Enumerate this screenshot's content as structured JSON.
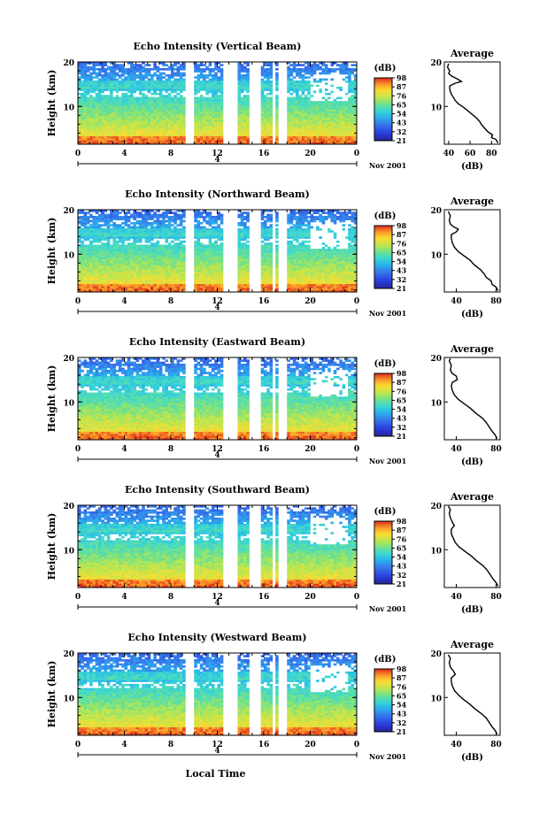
{
  "figure": {
    "date_label": "Nov 2001",
    "time_marker": "4",
    "bottom_xlabel": "Local Time"
  },
  "chart_data": [
    {
      "type": "heatmap",
      "title": "Echo Intensity (Vertical Beam)",
      "ylabel": "Height (km)",
      "xlabel": "",
      "xticks": [
        "0",
        "4",
        "8",
        "12",
        "16",
        "20",
        "0"
      ],
      "xlim": [
        0,
        24
      ],
      "yticks": [
        10,
        20
      ],
      "ylim": [
        1.5,
        20
      ],
      "colorbar": {
        "unit": "(dB)",
        "ticks": [
          98,
          87,
          76,
          65,
          54,
          43,
          32,
          21
        ],
        "range": [
          21,
          98
        ]
      },
      "profile": {
        "title": "Average",
        "xlabel": "(dB)",
        "xticks": [
          40,
          60,
          80
        ],
        "xlim": [
          36,
          88
        ],
        "yticks": [
          10,
          20
        ],
        "points": [
          [
            86,
            1.8
          ],
          [
            84,
            2.6
          ],
          [
            80,
            3.0
          ],
          [
            81,
            3.6
          ],
          [
            77,
            4.2
          ],
          [
            74,
            5.0
          ],
          [
            71,
            5.8
          ],
          [
            69,
            6.6
          ],
          [
            66,
            7.4
          ],
          [
            62,
            8.2
          ],
          [
            58,
            9.0
          ],
          [
            54,
            9.8
          ],
          [
            49,
            10.6
          ],
          [
            46,
            11.4
          ],
          [
            44,
            12.2
          ],
          [
            42,
            13.0
          ],
          [
            41,
            14.0
          ],
          [
            41,
            14.6
          ],
          [
            46,
            15.2
          ],
          [
            52,
            15.6
          ],
          [
            48,
            16.2
          ],
          [
            43,
            16.8
          ],
          [
            40,
            17.4
          ],
          [
            41,
            18.0
          ],
          [
            39,
            18.8
          ],
          [
            40,
            19.6
          ]
        ]
      }
    },
    {
      "type": "heatmap",
      "title": "Echo Intensity (Northward Beam)",
      "ylabel": "Height (km)",
      "xlabel": "",
      "xticks": [
        "0",
        "4",
        "8",
        "12",
        "16",
        "20",
        "0"
      ],
      "xlim": [
        0,
        24
      ],
      "yticks": [
        10,
        20
      ],
      "ylim": [
        1.5,
        20
      ],
      "colorbar": {
        "unit": "(dB)",
        "ticks": [
          98,
          87,
          76,
          65,
          54,
          43,
          32,
          21
        ],
        "range": [
          21,
          98
        ]
      },
      "profile": {
        "title": "Average",
        "xlabel": "(dB)",
        "xticks": [
          40,
          80
        ],
        "xlim": [
          28,
          84
        ],
        "yticks": [
          10,
          20
        ],
        "points": [
          [
            82,
            1.8
          ],
          [
            80,
            2.6
          ],
          [
            76,
            3.2
          ],
          [
            75,
            4.0
          ],
          [
            70,
            4.8
          ],
          [
            68,
            5.6
          ],
          [
            64,
            6.6
          ],
          [
            58,
            7.6
          ],
          [
            54,
            8.6
          ],
          [
            48,
            9.6
          ],
          [
            42,
            10.6
          ],
          [
            38,
            11.6
          ],
          [
            36,
            12.6
          ],
          [
            35,
            13.6
          ],
          [
            35,
            14.4
          ],
          [
            40,
            15.0
          ],
          [
            42,
            15.6
          ],
          [
            37,
            16.2
          ],
          [
            34,
            16.8
          ],
          [
            33,
            17.6
          ],
          [
            34,
            18.6
          ],
          [
            32,
            19.6
          ]
        ]
      }
    },
    {
      "type": "heatmap",
      "title": "Echo Intensity (Eastward Beam)",
      "ylabel": "Height (km)",
      "xlabel": "",
      "xticks": [
        "0",
        "4",
        "8",
        "12",
        "16",
        "20",
        "0"
      ],
      "xlim": [
        0,
        24
      ],
      "yticks": [
        10,
        20
      ],
      "ylim": [
        1.5,
        20
      ],
      "colorbar": {
        "unit": "(dB)",
        "ticks": [
          98,
          87,
          76,
          65,
          54,
          43,
          32,
          21
        ],
        "range": [
          21,
          98
        ]
      },
      "profile": {
        "title": "Average",
        "xlabel": "(dB)",
        "xticks": [
          40,
          80
        ],
        "xlim": [
          28,
          84
        ],
        "yticks": [
          10,
          20
        ],
        "points": [
          [
            81,
            1.8
          ],
          [
            79,
            2.6
          ],
          [
            76,
            3.4
          ],
          [
            73,
            4.4
          ],
          [
            70,
            5.4
          ],
          [
            66,
            6.4
          ],
          [
            60,
            7.4
          ],
          [
            54,
            8.6
          ],
          [
            48,
            9.6
          ],
          [
            42,
            10.6
          ],
          [
            38,
            11.6
          ],
          [
            36,
            12.6
          ],
          [
            35,
            13.6
          ],
          [
            36,
            14.4
          ],
          [
            41,
            15.0
          ],
          [
            40,
            15.8
          ],
          [
            36,
            16.4
          ],
          [
            34,
            17.2
          ],
          [
            35,
            18.2
          ],
          [
            33,
            19.2
          ],
          [
            34,
            19.8
          ]
        ]
      }
    },
    {
      "type": "heatmap",
      "title": "Echo Intensity (Southward Beam)",
      "ylabel": "Height (km)",
      "xlabel": "",
      "xticks": [
        "0",
        "4",
        "8",
        "12",
        "16",
        "20",
        "0"
      ],
      "xlim": [
        0,
        24
      ],
      "yticks": [
        10,
        20
      ],
      "ylim": [
        1.5,
        20
      ],
      "colorbar": {
        "unit": "(dB)",
        "ticks": [
          98,
          87,
          76,
          65,
          54,
          43,
          32,
          21
        ],
        "range": [
          21,
          98
        ]
      },
      "profile": {
        "title": "Average",
        "xlabel": "(dB)",
        "xticks": [
          40,
          80
        ],
        "xlim": [
          28,
          84
        ],
        "yticks": [
          10,
          20
        ],
        "points": [
          [
            82,
            1.8
          ],
          [
            80,
            2.6
          ],
          [
            77,
            3.4
          ],
          [
            74,
            4.4
          ],
          [
            71,
            5.4
          ],
          [
            67,
            6.4
          ],
          [
            61,
            7.4
          ],
          [
            55,
            8.6
          ],
          [
            49,
            9.6
          ],
          [
            43,
            10.6
          ],
          [
            39,
            11.6
          ],
          [
            37,
            12.6
          ],
          [
            35,
            13.6
          ],
          [
            35,
            14.6
          ],
          [
            38,
            15.4
          ],
          [
            36,
            16.2
          ],
          [
            34,
            17.2
          ],
          [
            33,
            18.2
          ],
          [
            34,
            19.0
          ],
          [
            32,
            19.8
          ]
        ]
      }
    },
    {
      "type": "heatmap",
      "title": "Echo Intensity (Westward Beam)",
      "ylabel": "Height (km)",
      "xlabel": "",
      "xticks": [
        "0",
        "4",
        "8",
        "12",
        "16",
        "20",
        "0"
      ],
      "xlim": [
        0,
        24
      ],
      "yticks": [
        10,
        20
      ],
      "ylim": [
        1.5,
        20
      ],
      "colorbar": {
        "unit": "(dB)",
        "ticks": [
          98,
          87,
          76,
          65,
          54,
          43,
          32,
          21
        ],
        "range": [
          21,
          98
        ]
      },
      "profile": {
        "title": "Average",
        "xlabel": "(dB)",
        "xticks": [
          40,
          80
        ],
        "xlim": [
          28,
          84
        ],
        "yticks": [
          10,
          20
        ],
        "points": [
          [
            81,
            1.8
          ],
          [
            79,
            2.6
          ],
          [
            76,
            3.4
          ],
          [
            73,
            4.4
          ],
          [
            70,
            5.4
          ],
          [
            65,
            6.4
          ],
          [
            59,
            7.4
          ],
          [
            53,
            8.6
          ],
          [
            47,
            9.6
          ],
          [
            42,
            10.6
          ],
          [
            38,
            11.6
          ],
          [
            36,
            12.6
          ],
          [
            35,
            13.6
          ],
          [
            35,
            14.4
          ],
          [
            39,
            15.2
          ],
          [
            37,
            16.0
          ],
          [
            34,
            16.8
          ],
          [
            33,
            17.8
          ],
          [
            34,
            18.8
          ],
          [
            32,
            19.6
          ]
        ]
      }
    }
  ]
}
